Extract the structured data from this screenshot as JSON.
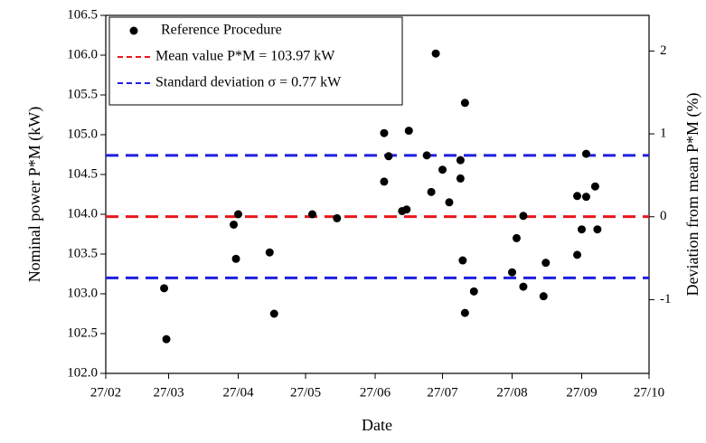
{
  "chart_data": {
    "type": "scatter",
    "x_label": "Date",
    "y_label": "Nominal power P*M (kW)",
    "y2_label": "Deviation from mean P*M (%)",
    "xlim": [
      "27/02",
      "27/10"
    ],
    "xticks": [
      "27/02",
      "27/03",
      "27/04",
      "27/05",
      "27/06",
      "27/07",
      "27/08",
      "27/09",
      "27/10"
    ],
    "ylim": [
      102.0,
      106.5
    ],
    "yticks": [
      {
        "value": 102,
        "label": "102.0"
      },
      102.5,
      {
        "value": 103,
        "label": "103.0"
      },
      103.5,
      {
        "value": 104,
        "label": "104.0"
      },
      104.5,
      {
        "value": 105,
        "label": "105.0"
      },
      105.5,
      {
        "value": 106,
        "label": "106.0"
      },
      106.5
    ],
    "y2lim": [
      -1.89,
      2.43
    ],
    "y2ticks": [
      -1,
      0,
      1,
      2
    ],
    "grid": false,
    "legend": "upper left",
    "series": [
      {
        "name": "Reference Procedure",
        "color": "#000000",
        "x": [
          "25/03",
          "26/03",
          "25/04",
          "26/04",
          "27/04",
          "11/05",
          "13/05",
          "30/05",
          "10/06",
          "01/07",
          "01/07",
          "03/07",
          "09/07",
          "11/07",
          "12/07",
          "20/07",
          "22/07",
          "24/07",
          "27/07",
          "30/07",
          "04/08",
          "04/08",
          "05/08",
          "06/08",
          "06/08",
          "10/08",
          "27/08",
          "29/08",
          "01/09",
          "01/09",
          "10/09",
          "11/09",
          "25/09",
          "25/09",
          "27/09",
          "29/09",
          "29/09",
          "03/10",
          "04/10"
        ],
        "values": [
          103.07,
          102.43,
          103.87,
          103.44,
          104.0,
          103.52,
          102.75,
          104.0,
          103.95,
          105.02,
          104.41,
          104.73,
          104.04,
          104.06,
          105.05,
          104.74,
          104.28,
          106.02,
          104.56,
          104.15,
          104.45,
          104.68,
          103.42,
          102.76,
          105.4,
          103.03,
          103.27,
          103.7,
          103.98,
          103.09,
          102.97,
          103.39,
          104.23,
          103.49,
          103.81,
          104.22,
          104.76,
          104.35,
          103.81
        ]
      }
    ],
    "reference_lines": [
      {
        "name": "Mean value P*M = 103.97 kW",
        "color": "#e8161b",
        "value": 103.97
      },
      {
        "name": "Standard deviation σ = 0.77 kW",
        "color": "#1f1fe0",
        "value": 104.74
      },
      {
        "color": "#1f1fe0",
        "value": 103.2
      }
    ]
  }
}
